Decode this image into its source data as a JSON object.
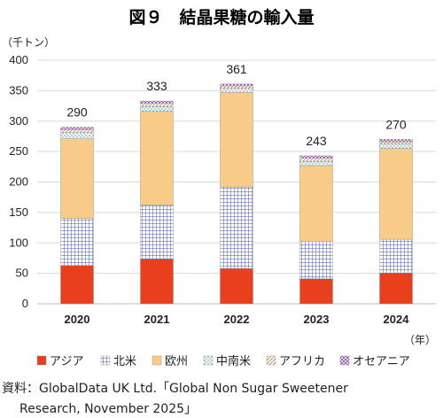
{
  "chart_data": {
    "type": "bar",
    "stacked": true,
    "title": "図９　結晶果糖の輸入量",
    "ylabel": "（千トン）",
    "xlabel": "（年）",
    "categories": [
      "2020",
      "2021",
      "2022",
      "2023",
      "2024"
    ],
    "ylim": [
      0,
      400
    ],
    "yticks": [
      "0",
      "50",
      "100",
      "150",
      "200",
      "250",
      "300",
      "350",
      "400"
    ],
    "grid": true,
    "legend_position": "bottom",
    "series": [
      {
        "name": "アジア",
        "values": [
          63,
          73,
          58,
          41,
          50
        ],
        "color": "#e8401c",
        "pattern": "solid"
      },
      {
        "name": "北米",
        "values": [
          77,
          89,
          134,
          61,
          56
        ],
        "color": "#5566b8",
        "pattern": "grid"
      },
      {
        "name": "欧州",
        "values": [
          131,
          154,
          155,
          125,
          149
        ],
        "color": "#f8cc88",
        "pattern": "solid"
      },
      {
        "name": "中南米",
        "values": [
          10,
          8,
          7,
          7,
          7
        ],
        "color": "#3fa0a0",
        "pattern": "dots"
      },
      {
        "name": "アフリカ",
        "values": [
          5,
          5,
          4,
          5,
          4
        ],
        "color": "#d9a070",
        "pattern": "diagonal"
      },
      {
        "name": "オセアニア",
        "values": [
          4,
          4,
          3,
          4,
          4
        ],
        "color": "#8844aa",
        "pattern": "cross"
      }
    ],
    "totals": [
      "290",
      "333",
      "361",
      "243",
      "270"
    ]
  },
  "source": {
    "line1": "資料：GlobalData UK Ltd.「Global Non Sugar Sweetener",
    "line2": "Research, November 2025」"
  }
}
